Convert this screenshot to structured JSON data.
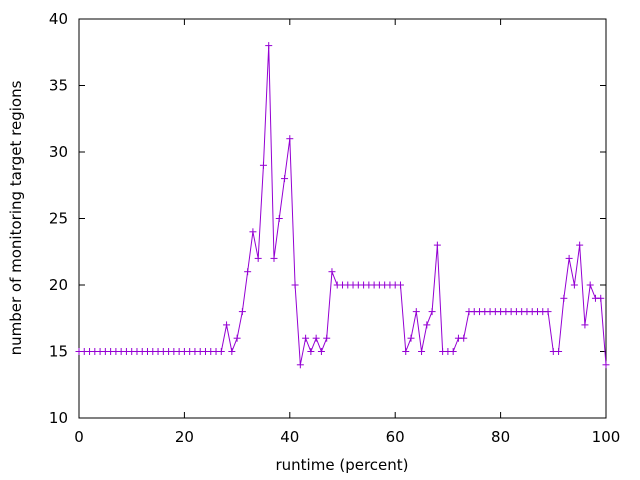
{
  "chart_data": {
    "type": "line",
    "title": "",
    "xlabel": "runtime (percent)",
    "ylabel": "number of monitoring target regions",
    "xlim": [
      0,
      100
    ],
    "ylim": [
      10,
      40
    ],
    "xticks": [
      0,
      20,
      40,
      60,
      80,
      100
    ],
    "yticks": [
      10,
      15,
      20,
      25,
      30,
      35,
      40
    ],
    "grid": false,
    "legend": "none",
    "marker": "plus",
    "series": [
      {
        "color": "#9400d3",
        "x": [
          0,
          1,
          2,
          3,
          4,
          5,
          6,
          7,
          8,
          9,
          10,
          11,
          12,
          13,
          14,
          15,
          16,
          17,
          18,
          19,
          20,
          21,
          22,
          23,
          24,
          25,
          26,
          27,
          28,
          29,
          30,
          31,
          32,
          33,
          34,
          35,
          36,
          37,
          38,
          39,
          40,
          41,
          42,
          43,
          44,
          45,
          46,
          47,
          48,
          49,
          50,
          51,
          52,
          53,
          54,
          55,
          56,
          57,
          58,
          59,
          60,
          61,
          62,
          63,
          64,
          65,
          66,
          67,
          68,
          69,
          70,
          71,
          72,
          73,
          74,
          75,
          76,
          77,
          78,
          79,
          80,
          81,
          82,
          83,
          84,
          85,
          86,
          87,
          88,
          89,
          90,
          91,
          92,
          93,
          94,
          95,
          96,
          97,
          98,
          99,
          100
        ],
        "y": [
          15,
          15,
          15,
          15,
          15,
          15,
          15,
          15,
          15,
          15,
          15,
          15,
          15,
          15,
          15,
          15,
          15,
          15,
          15,
          15,
          15,
          15,
          15,
          15,
          15,
          15,
          15,
          15,
          17,
          15,
          16,
          18,
          21,
          24,
          22,
          29,
          38,
          22,
          25,
          28,
          31,
          20,
          14,
          16,
          15,
          16,
          15,
          16,
          21,
          20,
          20,
          20,
          20,
          20,
          20,
          20,
          20,
          20,
          20,
          20,
          20,
          20,
          15,
          16,
          18,
          15,
          17,
          18,
          23,
          15,
          15,
          15,
          16,
          16,
          18,
          18,
          18,
          18,
          18,
          18,
          18,
          18,
          18,
          18,
          18,
          18,
          18,
          18,
          18,
          18,
          15,
          15,
          19,
          22,
          20,
          23,
          17,
          20,
          19,
          19,
          14
        ]
      }
    ]
  }
}
